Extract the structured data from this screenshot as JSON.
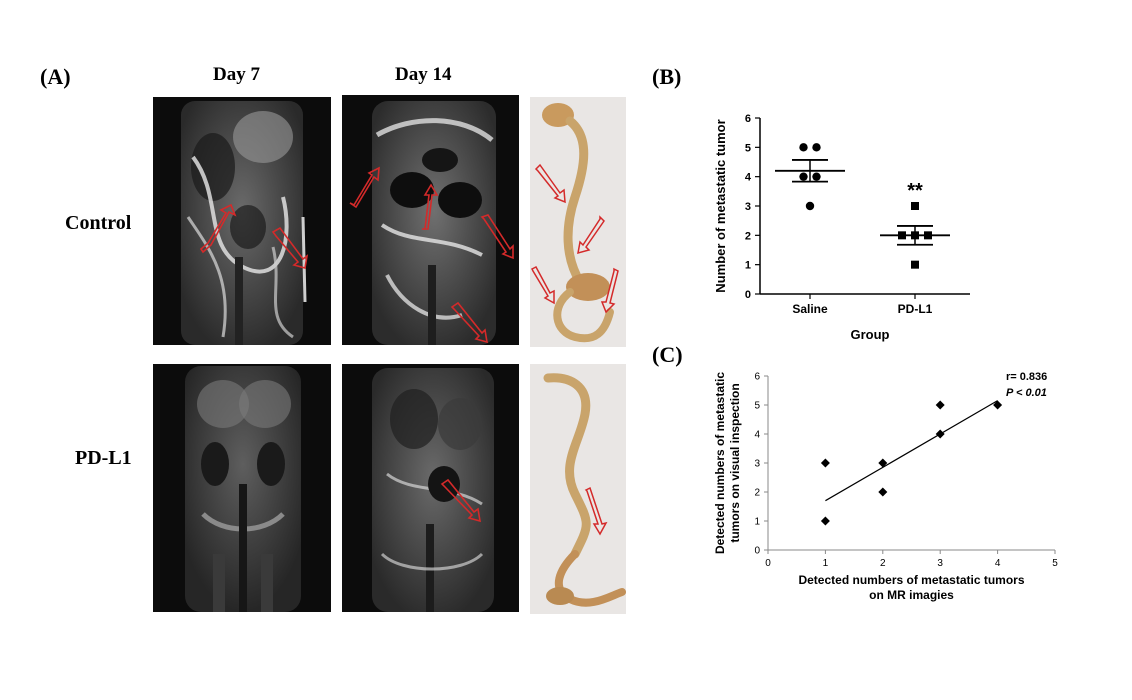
{
  "panel_a": {
    "label": "(A)",
    "columns": [
      "Day 7",
      "Day 14"
    ],
    "rows": [
      "Control",
      "PD-L1"
    ]
  },
  "panel_b": {
    "label": "(B)"
  },
  "panel_c": {
    "label": "(C)"
  },
  "colors": {
    "arrow": "#d42a2a",
    "axis": "#000000",
    "mri_bg": "#0c0c0c",
    "photo_bg": "#e9e6e4",
    "intestine": "#c9a46b"
  },
  "chart_data": [
    {
      "type": "scatter",
      "panel": "B",
      "categories": [
        "Saline",
        "PD-L1"
      ],
      "series": [
        {
          "name": "Saline",
          "marker": "circle",
          "values": [
            5,
            5,
            4,
            4,
            3
          ],
          "mean": 4.2,
          "sem": 0.37
        },
        {
          "name": "PD-L1",
          "marker": "square",
          "values": [
            3,
            2,
            2,
            2,
            1
          ],
          "mean": 2.0,
          "sem": 0.32
        }
      ],
      "annotation": "**",
      "xlabel": "Group",
      "ylabel": "Number of metastatic tumor",
      "ylim": [
        0,
        6
      ],
      "yticks": [
        0,
        1,
        2,
        3,
        4,
        5,
        6
      ]
    },
    {
      "type": "scatter",
      "panel": "C",
      "points": [
        [
          1,
          3
        ],
        [
          1,
          1
        ],
        [
          2,
          3
        ],
        [
          2,
          2
        ],
        [
          3,
          5
        ],
        [
          3,
          4
        ],
        [
          4,
          5
        ]
      ],
      "trendline": [
        [
          1,
          1.7
        ],
        [
          4,
          5.15
        ]
      ],
      "xlabel_lines": [
        "Detected  numbers of metastatic tumors",
        "on MR imagies"
      ],
      "ylabel_lines": [
        "Detected numbers of metastatic",
        "tumors on visual inspection"
      ],
      "xlim": [
        0,
        5
      ],
      "ylim": [
        0,
        6
      ],
      "xticks": [
        0,
        1,
        2,
        3,
        4,
        5
      ],
      "yticks": [
        0,
        1,
        2,
        3,
        4,
        5,
        6
      ],
      "stat_r": "r=  0.836",
      "stat_p": "P <  0.01"
    }
  ]
}
